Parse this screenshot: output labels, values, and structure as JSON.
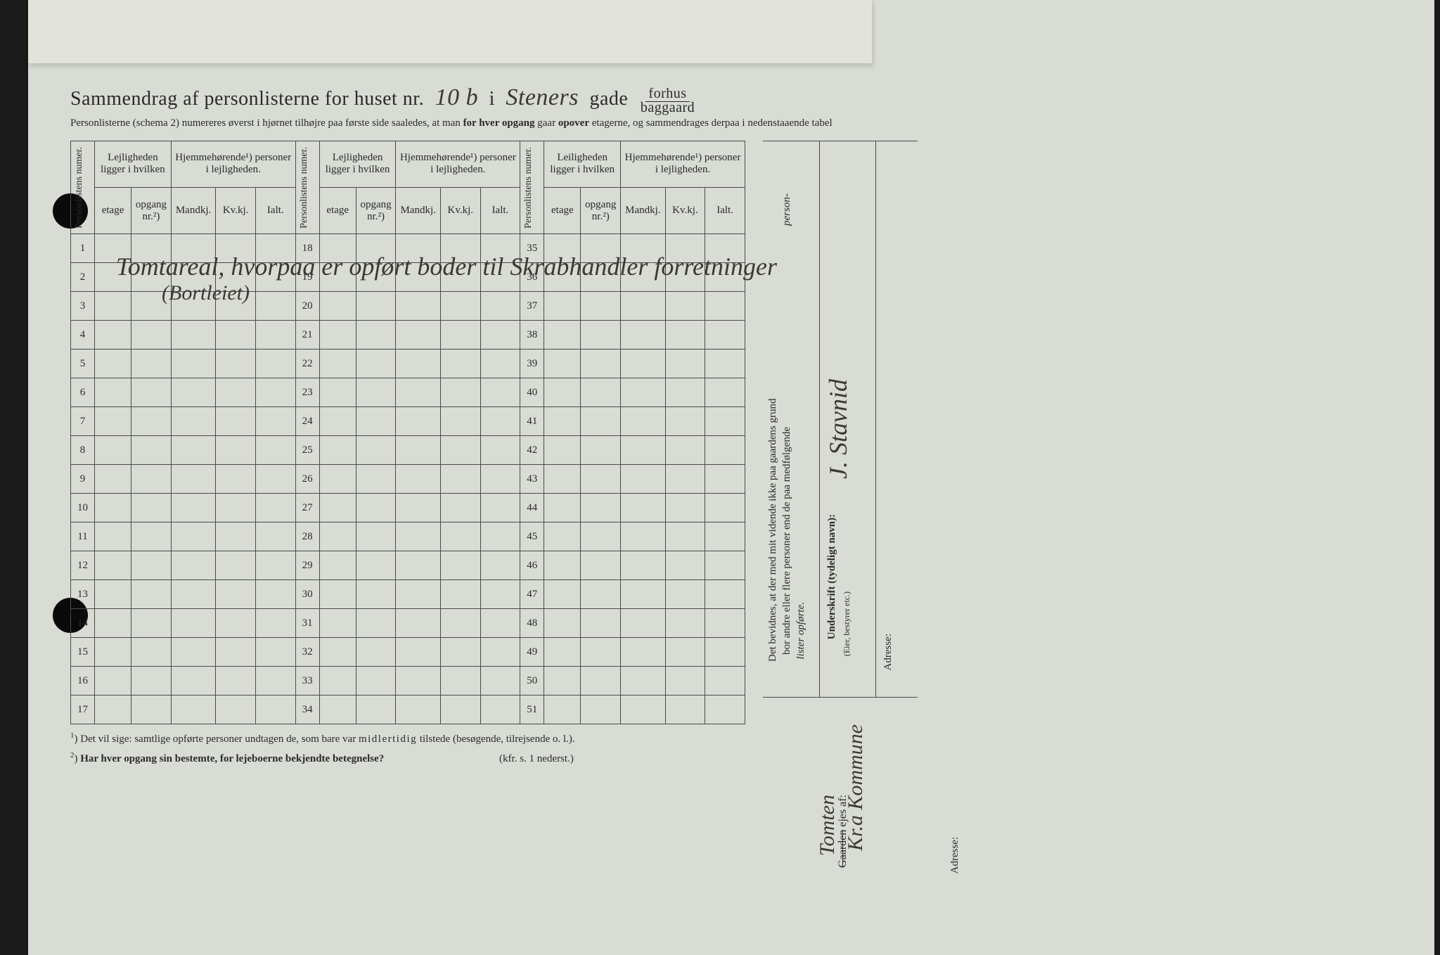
{
  "title": {
    "prefix": "Sammendrag af personlisterne for huset nr.",
    "nr_hand": "10 b",
    "mid": "i",
    "street_hand": "Steners",
    "after": "gade",
    "frac_top": "forhus",
    "frac_bot": "baggaard"
  },
  "subnote_a": "Personlisterne (schema 2) numereres øverst i hjørnet tilhøjre paa første side saaledes, at man ",
  "subnote_b": "for hver opgang",
  "subnote_c": " gaar ",
  "subnote_d": "opover",
  "subnote_e": " etagerne, og sammendrages derpaa i nedenstaaende tabel",
  "headers": {
    "personlistens_numer": "Personlistens numer.",
    "lejligheden_ligger": "Lejligheden ligger i hvilken",
    "leiligheden_ligger": "Leiligheden ligger i hvilken",
    "hjemmeh": "Hjemmehørende¹) personer i lejligheden.",
    "etage": "etage",
    "opgang": "opgang nr.²)",
    "mandkj": "Mandkj.",
    "kvkj": "Kv.kj.",
    "ialt": "Ialt."
  },
  "rows_a": [
    1,
    2,
    3,
    4,
    5,
    6,
    7,
    8,
    9,
    10,
    11,
    12,
    13,
    14,
    15,
    16,
    17
  ],
  "rows_b": [
    18,
    19,
    20,
    21,
    22,
    23,
    24,
    25,
    26,
    27,
    28,
    29,
    30,
    31,
    32,
    33,
    34
  ],
  "rows_c": [
    35,
    36,
    37,
    38,
    39,
    40,
    41,
    42,
    43,
    44,
    45,
    46,
    47,
    48,
    49,
    50,
    51
  ],
  "handwritten_note_1": "Tomtareal, hvorpaa er opført boder til Skrabhandler forretninger",
  "handwritten_note_2": "(Bortleiet)",
  "footnote1_sup": "1",
  "footnote1": ") Det vil sige: samtlige opførte personer undtagen de, som bare var ",
  "footnote1_sp": "midlertidig",
  "footnote1_tail": " tilstede (besøgende, tilrejsende o. l.).",
  "footnote2_sup": "2",
  "footnote2": ") ",
  "footnote2_bold": "Har hver opgang sin bestemte, for lejeboerne bekjendte betegnelse?",
  "footnote2_tail": "(kfr. s. 1 nederst.)",
  "right_block": {
    "line1": "Det bevidnes, at der med mit vidende ikke paa gaardens grund",
    "line2a": "bor andre eller flere personer end de paa medfølgende",
    "line2b": "person-",
    "line3": "lister opførte.",
    "underskrift": "Underskrift (tydeligt navn):",
    "role": "(Eier, bestyrer etc.)",
    "adresse": "Adresse:",
    "signature": "J. Stavnid"
  },
  "bottom_right": {
    "label_strike": "Gaarden",
    "label_after": " ejes af:",
    "hand1": "Tomten",
    "hand2": "Kr.a Kommune",
    "adresse": "Adresse:"
  },
  "colors": {
    "paper": "#d8dcd4",
    "ink": "#2a2a2a",
    "hand": "#3a3a35",
    "border": "#4a4a4a"
  }
}
